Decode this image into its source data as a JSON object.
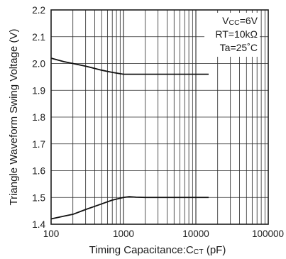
{
  "chart_data": {
    "type": "line",
    "title": "",
    "xlabel": "Timing Capacitance:C",
    "xlabel_subscript": "CT",
    "xlabel_unit": " (pF)",
    "ylabel": "Triangle Waveform Swing Voltage (V)",
    "x_scale": "log",
    "xlim": [
      100,
      100000
    ],
    "ylim": [
      1.4,
      2.2
    ],
    "x_ticks": [
      100,
      1000,
      10000,
      100000
    ],
    "x_tick_labels": [
      "100",
      "1000",
      "10000",
      "100000"
    ],
    "y_ticks": [
      1.4,
      1.5,
      1.6,
      1.7,
      1.8,
      1.9,
      2.0,
      2.1,
      2.2
    ],
    "y_tick_labels": [
      "1.4",
      "1.5",
      "1.6",
      "1.7",
      "1.8",
      "1.9",
      "2.0",
      "2.1",
      "2.2"
    ],
    "grid": true,
    "annotations": [
      {
        "main": "V",
        "sub": "CC",
        "rest": "=6V"
      },
      {
        "main": "RT=10kΩ",
        "sub": "",
        "rest": ""
      },
      {
        "main": "Ta=25˚",
        "sub": "",
        "rest": "C"
      }
    ],
    "series": [
      {
        "x": [
          100,
          150,
          200,
          300,
          500,
          700,
          1000,
          1500,
          2000,
          5000,
          10000,
          15000
        ],
        "y": [
          2.02,
          2.007,
          2.0,
          1.99,
          1.975,
          1.967,
          1.96,
          1.96,
          1.96,
          1.96,
          1.96,
          1.96
        ]
      },
      {
        "x": [
          100,
          150,
          200,
          300,
          500,
          700,
          1000,
          1200,
          1500,
          2000,
          5000,
          10000,
          15000
        ],
        "y": [
          1.42,
          1.43,
          1.437,
          1.455,
          1.476,
          1.49,
          1.5,
          1.503,
          1.501,
          1.5,
          1.5,
          1.5,
          1.5
        ]
      }
    ]
  }
}
